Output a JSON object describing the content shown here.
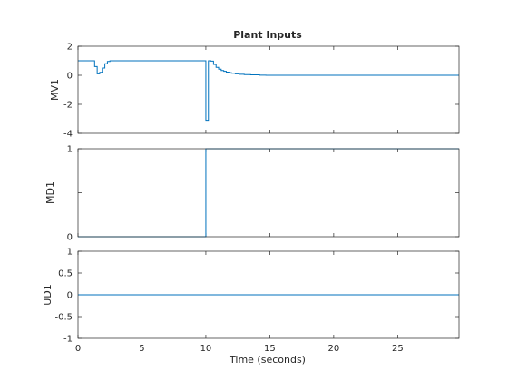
{
  "figure": {
    "title": "Plant Inputs",
    "xlabel": "Time (seconds)",
    "background": "#ffffff",
    "axes_color": "#262626",
    "line_color": "#0072bd"
  },
  "chart_data": [
    {
      "type": "line",
      "title": "Plant Inputs",
      "ylabel": "MV1",
      "xlabel": "",
      "xlim": [
        0,
        29.8
      ],
      "ylim": [
        -4,
        2
      ],
      "yticks": [
        -4,
        -2,
        0,
        2
      ],
      "xticks": [
        0,
        5,
        10,
        15,
        20,
        25
      ],
      "show_xticklabels": false,
      "grid": false,
      "step": true,
      "series": [
        {
          "x": [
            0,
            1.3,
            1.5,
            1.7,
            1.9,
            2.1,
            2.3,
            2.5,
            10.0,
            10.2,
            10.4,
            10.6,
            10.8,
            11.0,
            11.2,
            11.4,
            11.6,
            11.8,
            12.0,
            12.3,
            12.6,
            13.0,
            13.5,
            14.2,
            14.7,
            29.8
          ],
          "y": [
            1.0,
            0.6,
            0.1,
            0.2,
            0.5,
            0.8,
            0.95,
            1.0,
            -3.1,
            1.0,
            0.98,
            0.75,
            0.55,
            0.42,
            0.33,
            0.27,
            0.22,
            0.18,
            0.14,
            0.1,
            0.07,
            0.05,
            0.03,
            0.01,
            0.0,
            0.0
          ]
        }
      ]
    },
    {
      "type": "line",
      "title": "",
      "ylabel": "MD1",
      "xlabel": "",
      "xlim": [
        0,
        29.8
      ],
      "ylim": [
        0,
        1
      ],
      "yticks": [
        0,
        0.5,
        1
      ],
      "ytick_labels": [
        "0",
        "",
        "1"
      ],
      "xticks": [
        0,
        5,
        10,
        15,
        20,
        25
      ],
      "show_xticklabels": false,
      "grid": false,
      "step": true,
      "series": [
        {
          "x": [
            0,
            10.0,
            29.8
          ],
          "y": [
            0,
            1,
            1
          ]
        }
      ]
    },
    {
      "type": "line",
      "title": "",
      "ylabel": "UD1",
      "xlabel": "Time (seconds)",
      "xlim": [
        0,
        29.8
      ],
      "ylim": [
        -1,
        1
      ],
      "yticks": [
        -1,
        -0.5,
        0,
        0.5,
        1
      ],
      "xticks": [
        0,
        5,
        10,
        15,
        20,
        25
      ],
      "show_xticklabels": true,
      "grid": false,
      "step": true,
      "series": [
        {
          "x": [
            0,
            29.8
          ],
          "y": [
            0,
            0
          ]
        }
      ]
    }
  ]
}
